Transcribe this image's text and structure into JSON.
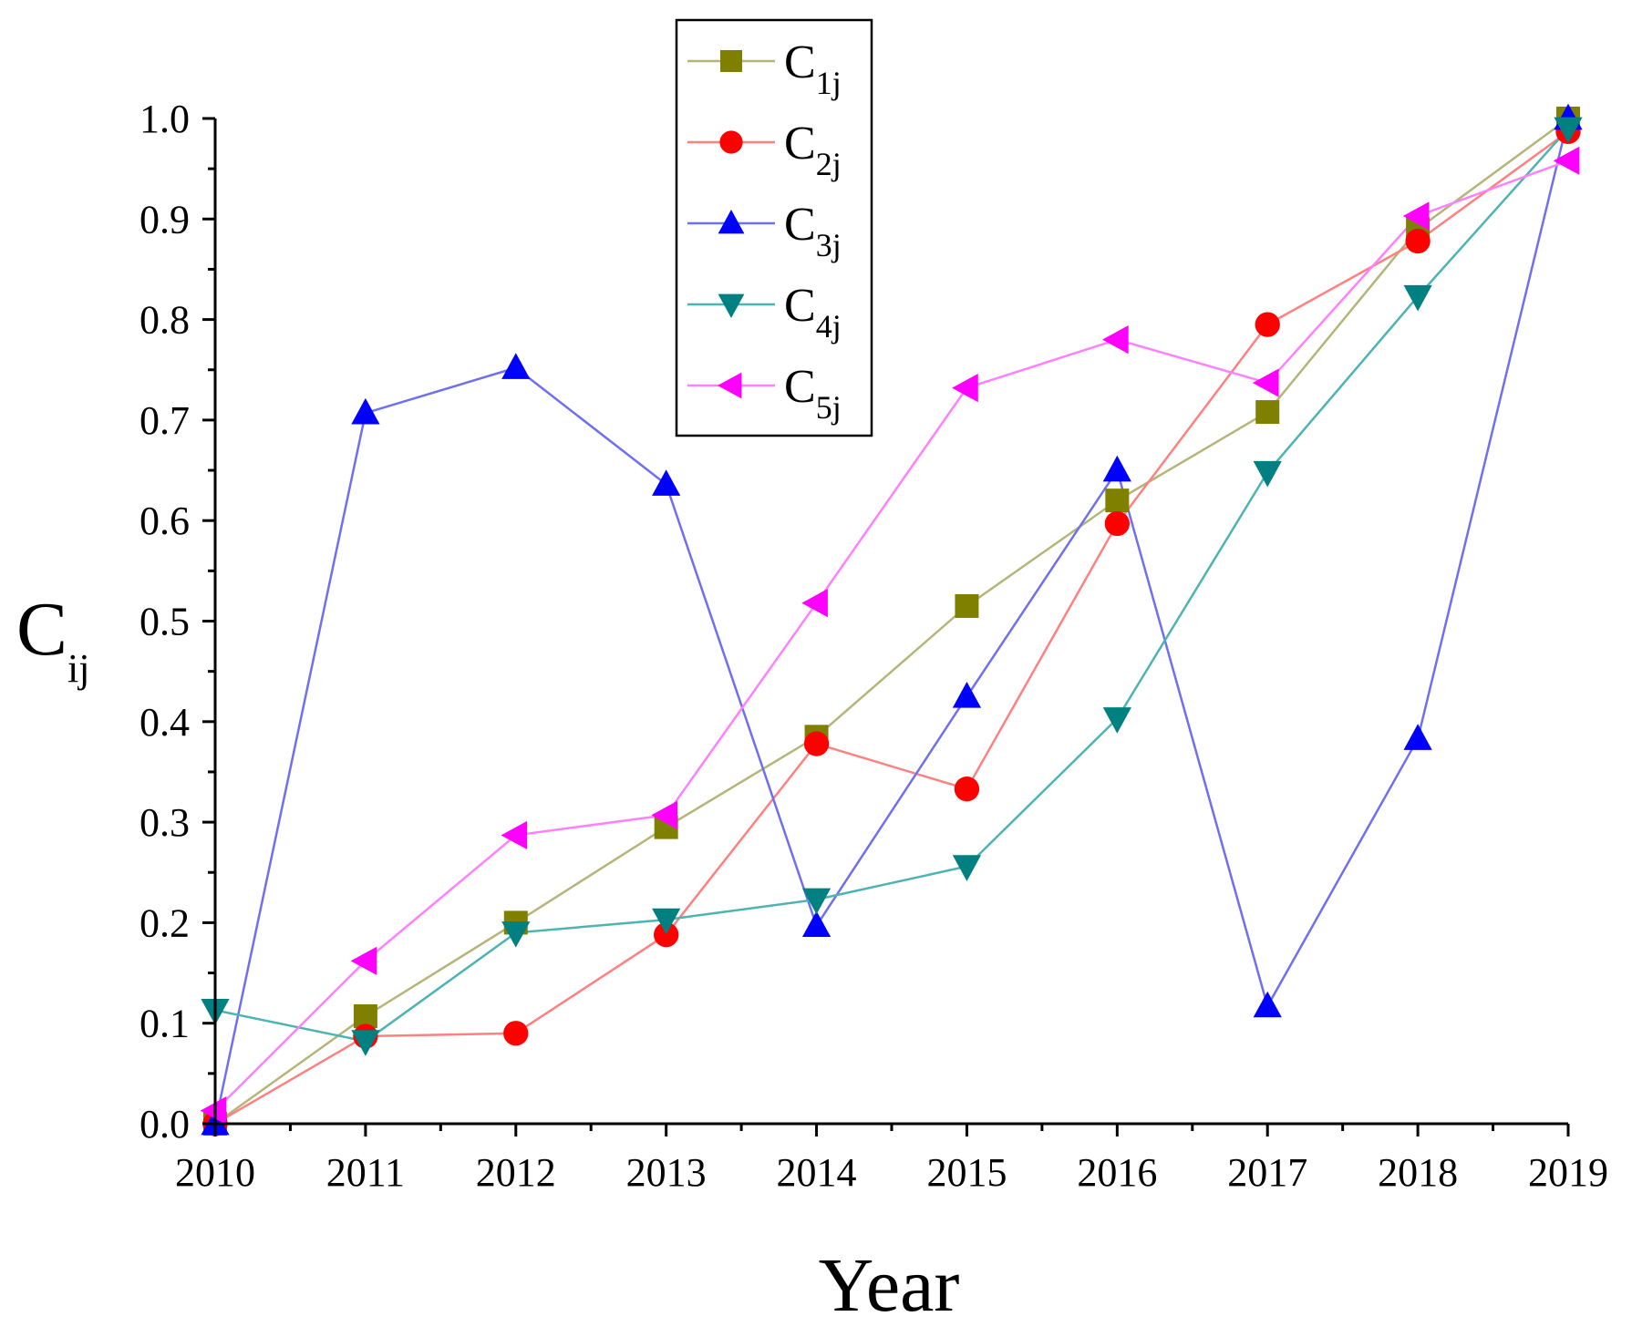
{
  "chart_data": {
    "type": "line",
    "title": "",
    "xlabel": "Year",
    "ylabel": "C",
    "ylabel_subscript": "ij",
    "x": [
      "2010",
      "2011",
      "2012",
      "2013",
      "2014",
      "2015",
      "2016",
      "2017",
      "2018",
      "2019"
    ],
    "ylim": [
      0,
      1.0
    ],
    "y_ticks": [
      "0.0",
      "0.1",
      "0.2",
      "0.3",
      "0.4",
      "0.5",
      "0.6",
      "0.7",
      "0.8",
      "0.9",
      "1.0"
    ],
    "grid": false,
    "legend_position": "top-center",
    "series": [
      {
        "name": "C1j",
        "label_main": "C",
        "label_sub": "1j",
        "color": "#808000",
        "line_color": "#b5b57a",
        "marker": "square",
        "values": [
          0.0,
          0.107,
          0.2,
          0.295,
          0.385,
          0.515,
          0.62,
          0.708,
          0.89,
          1.0
        ]
      },
      {
        "name": "C2j",
        "label_main": "C",
        "label_sub": "2j",
        "color": "#ff0000",
        "line_color": "#ff8080",
        "marker": "circle",
        "values": [
          0.0,
          0.087,
          0.09,
          0.188,
          0.378,
          0.333,
          0.597,
          0.795,
          0.878,
          0.987
        ]
      },
      {
        "name": "C3j",
        "label_main": "C",
        "label_sub": "3j",
        "color": "#0000ff",
        "line_color": "#6f6ff0",
        "marker": "triangle-up",
        "values": [
          0.0,
          0.707,
          0.752,
          0.636,
          0.197,
          0.425,
          0.65,
          0.117,
          0.383,
          1.0
        ]
      },
      {
        "name": "C4j",
        "label_main": "C",
        "label_sub": "4j",
        "color": "#008080",
        "line_color": "#4db3b3",
        "marker": "triangle-down",
        "values": [
          0.113,
          0.082,
          0.19,
          0.203,
          0.223,
          0.256,
          0.403,
          0.648,
          0.823,
          0.99
        ]
      },
      {
        "name": "C5j",
        "label_main": "C",
        "label_sub": "5j",
        "color": "#ff00ff",
        "line_color": "#ff80ff",
        "marker": "triangle-left",
        "values": [
          0.013,
          0.162,
          0.287,
          0.307,
          0.518,
          0.732,
          0.78,
          0.737,
          0.903,
          0.958
        ]
      }
    ]
  }
}
